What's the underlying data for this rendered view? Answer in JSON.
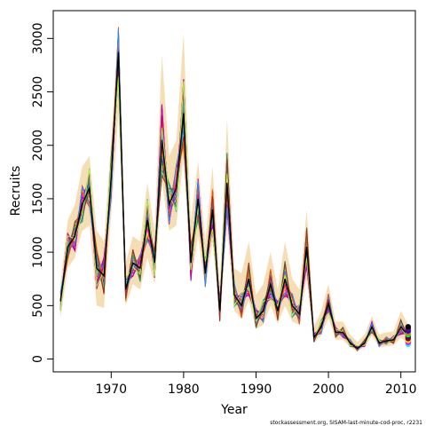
{
  "chart_data": {
    "type": "line",
    "xlabel": "Year",
    "ylabel": "Recruits",
    "footer_text": "stockassessment.org, SISAM-last-minute-cod-proc, r2231",
    "xlim": [
      1962,
      2012
    ],
    "ylim": [
      -120,
      3260
    ],
    "x_ticks": [
      1970,
      1980,
      1990,
      2000,
      2010
    ],
    "y_ticks": [
      0,
      500,
      1000,
      1500,
      2000,
      2500,
      3000
    ],
    "grid": false,
    "legend": "none",
    "band_color": "#f5deb3",
    "main_line_color": "#000000",
    "years": [
      1963,
      1964,
      1965,
      1966,
      1967,
      1968,
      1969,
      1970,
      1971,
      1972,
      1973,
      1974,
      1975,
      1976,
      1977,
      1978,
      1979,
      1980,
      1981,
      1982,
      1983,
      1984,
      1985,
      1986,
      1987,
      1988,
      1989,
      1990,
      1991,
      1992,
      1993,
      1994,
      1995,
      1996,
      1997,
      1998,
      1999,
      2000,
      2001,
      2002,
      2003,
      2004,
      2005,
      2006,
      2007,
      2008,
      2009,
      2010,
      2011
    ],
    "main_series": [
      540,
      1050,
      1150,
      1450,
      1600,
      850,
      780,
      1700,
      2870,
      650,
      900,
      850,
      1300,
      900,
      2050,
      1450,
      1600,
      2300,
      900,
      1500,
      800,
      1400,
      450,
      1650,
      600,
      500,
      750,
      380,
      450,
      700,
      450,
      750,
      500,
      420,
      1050,
      200,
      300,
      520,
      250,
      250,
      150,
      100,
      150,
      300,
      150,
      170,
      180,
      300,
      220
    ],
    "band_lower": [
      380,
      850,
      950,
      1200,
      1250,
      500,
      480,
      1350,
      2300,
      500,
      700,
      650,
      950,
      700,
      1650,
      1200,
      1250,
      1900,
      700,
      1150,
      650,
      1100,
      350,
      1250,
      450,
      380,
      550,
      280,
      320,
      500,
      330,
      500,
      350,
      320,
      750,
      150,
      220,
      380,
      180,
      180,
      110,
      75,
      110,
      220,
      110,
      120,
      130,
      200,
      150
    ],
    "band_upper": [
      700,
      1300,
      1450,
      1800,
      1900,
      1200,
      1100,
      2050,
      3150,
      900,
      1150,
      1100,
      1650,
      1200,
      2850,
      1900,
      2050,
      3050,
      1300,
      1850,
      1100,
      1800,
      700,
      2250,
      850,
      800,
      1100,
      600,
      700,
      1000,
      650,
      1100,
      750,
      650,
      1400,
      300,
      450,
      700,
      350,
      350,
      230,
      160,
      230,
      400,
      230,
      250,
      260,
      450,
      320
    ],
    "line_colors": [
      "#ff0000",
      "#0000cd",
      "#00a000",
      "#ff00ff",
      "#ffa500",
      "#00bfff",
      "#8b008b",
      "#dc143c",
      "#32cd32",
      "#4169e1",
      "#ff1493",
      "#daa520",
      "#20b2aa",
      "#9400d3",
      "#ff4500",
      "#2e8b57",
      "#c71585",
      "#1e90ff",
      "#b22222",
      "#adff2f"
    ],
    "end_point_colors": [
      "#00ffff",
      "#ff00ff",
      "#ffd700",
      "#8b0000",
      "#4b0082",
      "#00ff00",
      "#ff6600",
      "#0000ff",
      "#800080",
      "#000000"
    ]
  }
}
